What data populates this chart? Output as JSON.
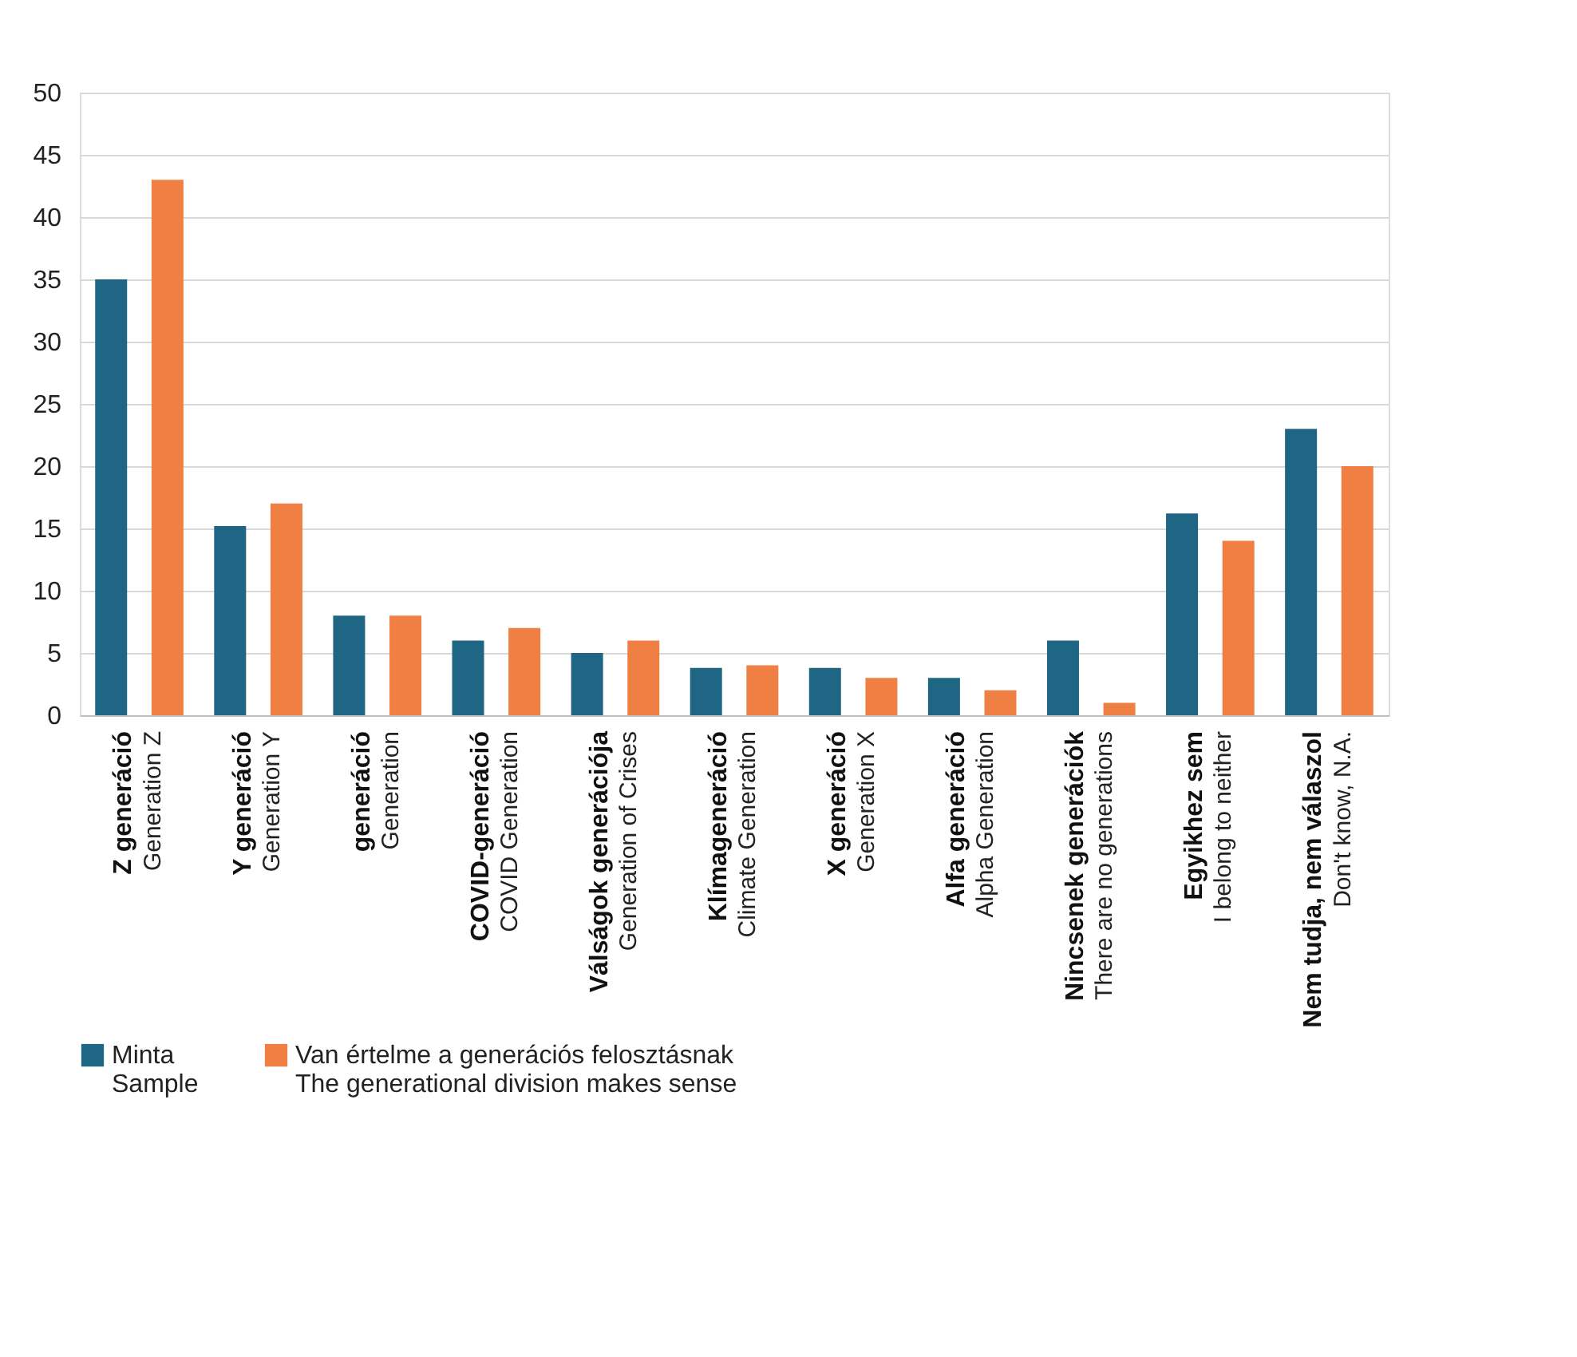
{
  "chart_data": {
    "type": "bar",
    "categories": [
      "Z generáció\nGeneration Z",
      "Y generáció\nGeneration Y",
      "generáció\nGeneration",
      "COVID-generáció\nCOVID Generation",
      "Válságok generációja\nGeneration of Crises",
      "Klímageneráció\nClimate Generation",
      "X generáció\nGeneration X",
      "Alfa generáció\nAlpha Generation",
      "Nincsenek generációk\nThere are no generations",
      "Egyikhez sem\nI belong to neither",
      "Nem tudja, nem válaszol\nDon't know, N.A."
    ],
    "series": [
      {
        "name": "Minta\nSample",
        "color": "#1f6584",
        "values": [
          35,
          15.2,
          8,
          6,
          5,
          3.8,
          3.8,
          3,
          6,
          16.2,
          23
        ]
      },
      {
        "name": "Van értelme a generációs felosztásnak\nThe generational division makes sense",
        "color": "#f07f43",
        "values": [
          43,
          17,
          8,
          7,
          6,
          4,
          3,
          2,
          1,
          14,
          20
        ]
      }
    ],
    "ylim": [
      0,
      50
    ],
    "yticks": [
      0,
      5,
      10,
      15,
      20,
      25,
      30,
      35,
      40,
      45,
      50
    ],
    "grid": "y",
    "legend": "bottom"
  }
}
